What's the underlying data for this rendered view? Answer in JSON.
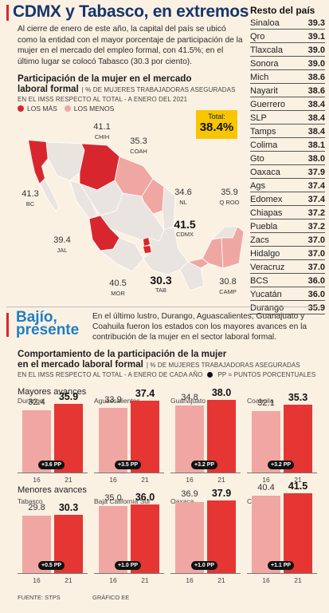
{
  "header": {
    "title": "CDMX y Tabasco, en extremos",
    "intro": "Al cierre de enero de este año, la capital del país se ubicó como la entidad con el mayor porcentaje de participación de la mujer en el mercado del empleo formal, con 41.5%; en el último lugar se colocó Tabasco (30.3 por ciento)."
  },
  "map_section": {
    "title_line1": "Participación de la mujer en el mercado",
    "title_line2": "laboral formal",
    "note_inline": "| % DE MUJERES TRABAJADORAS ASEGURADAS",
    "note_line2": "EN EL IMSS RESPECTO AL TOTAL - A ENERO DEL 2021",
    "legend_more": "LOS MÁS",
    "legend_less": "LOS MENOS",
    "total_label": "Total:",
    "total_value": "38.4%",
    "labels": [
      {
        "value": "41.1",
        "state": "CHIH"
      },
      {
        "value": "35.3",
        "state": "COAH"
      },
      {
        "value": "41.3",
        "state": "BC"
      },
      {
        "value": "34.6",
        "state": "NL"
      },
      {
        "value": "35.9",
        "state": "Q ROO"
      },
      {
        "value": "41.5",
        "state": "CDMX"
      },
      {
        "value": "39.4",
        "state": "JAL"
      },
      {
        "value": "40.5",
        "state": "MOR"
      },
      {
        "value": "30.3",
        "state": "TAB"
      },
      {
        "value": "30.8",
        "state": "CAMP"
      }
    ],
    "colors": {
      "more": "#d8262f",
      "less": "#f0a7a3",
      "rest": "#e9e4df"
    }
  },
  "ranking": {
    "title": "Resto del país",
    "rows": [
      {
        "state": "Sinaloa",
        "value": "39.3"
      },
      {
        "state": "Qro",
        "value": "39.1"
      },
      {
        "state": "Tlaxcala",
        "value": "39.0"
      },
      {
        "state": "Sonora",
        "value": "39.0"
      },
      {
        "state": "Mich",
        "value": "38.6"
      },
      {
        "state": "Nayarit",
        "value": "38.6"
      },
      {
        "state": "Guerrero",
        "value": "38.4"
      },
      {
        "state": "SLP",
        "value": "38.4"
      },
      {
        "state": "Tamps",
        "value": "38.4"
      },
      {
        "state": "Colima",
        "value": "38.1"
      },
      {
        "state": "Gto",
        "value": "38.0"
      },
      {
        "state": "Oaxaca",
        "value": "37.9"
      },
      {
        "state": "Ags",
        "value": "37.4"
      },
      {
        "state": "Edomex",
        "value": "37.4"
      },
      {
        "state": "Chiapas",
        "value": "37.2"
      },
      {
        "state": "Puebla",
        "value": "37.2"
      },
      {
        "state": "Zacs",
        "value": "37.0"
      },
      {
        "state": "Hidalgo",
        "value": "37.0"
      },
      {
        "state": "Veracruz",
        "value": "37.0"
      },
      {
        "state": "BCS",
        "value": "36.0"
      },
      {
        "state": "Yucatán",
        "value": "36.0"
      },
      {
        "state": "Durango",
        "value": "35.9"
      }
    ]
  },
  "section2": {
    "title_line1": "Bajío,",
    "title_line2": "presente",
    "intro": "En el último lustro, Durango, Aguascalientes, Guanajuato y Coahuila fueron los estados con los mayores avances en la contribución de la mujer en el sector laboral formal.",
    "chart_title_line1": "Comportamiento de la participación de la mujer",
    "chart_title_line2": "en el mercado laboral formal",
    "note_inline": "| % DE MUJERES TRABAJADORAS ASEGURADAS",
    "note_line2": "EN EL IMSS RESPECTO AL TOTAL - A ENERO DE CADA AÑO",
    "pp_legend": "PP = PUNTOS PORCENTUALES",
    "group_top": "Mayores avances",
    "group_bottom": "Menores avances",
    "source": "FUENTE: STPS",
    "credit": "GRÁFICO EE"
  },
  "chart_data": {
    "type": "bar",
    "title": "Comportamiento de la participación de la mujer en el mercado laboral formal",
    "ylabel": "% DE MUJERES TRABAJADORAS ASEGURADAS EN EL IMSS RESPECTO AL TOTAL - A ENERO DE CADA AÑO",
    "categories": [
      "16",
      "21"
    ],
    "ylim": [
      0,
      45
    ],
    "groups": [
      {
        "name": "Mayores avances",
        "panels": [
          {
            "state": "Durango",
            "values": [
              32.4,
              35.9
            ],
            "labels": [
              "32.4",
              "35.9"
            ],
            "change": "+3.6 PP"
          },
          {
            "state": "Aguascalientes",
            "values": [
              33.9,
              37.4
            ],
            "labels": [
              "33.9",
              "37.4"
            ],
            "change": "+3.5 PP"
          },
          {
            "state": "Guanajuato",
            "values": [
              34.8,
              38.0
            ],
            "labels": [
              "34.8",
              "38.0"
            ],
            "change": "+3.2 PP"
          },
          {
            "state": "Coahuila",
            "values": [
              32.1,
              35.3
            ],
            "labels": [
              "32.1",
              "35.3"
            ],
            "change": "+3.2 PP"
          }
        ]
      },
      {
        "name": "Menores avances",
        "panels": [
          {
            "state": "Tabasco",
            "values": [
              29.8,
              30.3
            ],
            "labels": [
              "29.8",
              "30.3"
            ],
            "change": "+0.5 PP"
          },
          {
            "state": "Baja California Sur",
            "values": [
              35.0,
              36.0
            ],
            "labels": [
              "35.0",
              "36.0"
            ],
            "change": "+1.0 PP"
          },
          {
            "state": "Oaxaca",
            "values": [
              36.9,
              37.9
            ],
            "labels": [
              "36.9",
              "37.9"
            ],
            "change": "+1.0 PP"
          },
          {
            "state": "CDMX",
            "values": [
              40.4,
              41.5
            ],
            "labels": [
              "40.4",
              "41.5"
            ],
            "change": "+1.1 PP"
          }
        ]
      }
    ],
    "colors": {
      "2016": "#f0a7a3",
      "2021": "#e53633",
      "pill": "#111111"
    }
  }
}
